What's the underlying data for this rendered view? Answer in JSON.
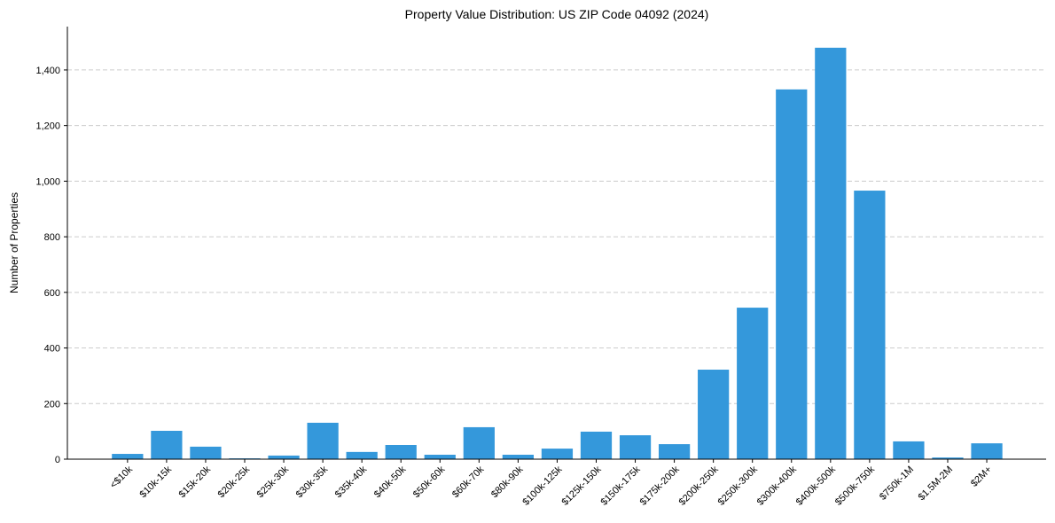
{
  "chart_data": {
    "type": "bar",
    "title": "Property Value Distribution: US ZIP Code 04092 (2024)",
    "xlabel": "",
    "ylabel": "Number of Properties",
    "ylim": [
      0,
      1556
    ],
    "yticks": [
      0,
      200,
      400,
      600,
      800,
      1000,
      1200,
      1400
    ],
    "ytick_labels": [
      "0",
      "200",
      "400",
      "600",
      "800",
      "1,000",
      "1,200",
      "1,400"
    ],
    "grid": "y dashed",
    "color": "#3498db",
    "categories": [
      "<$10k",
      "$10k-15k",
      "$15k-20k",
      "$20k-25k",
      "$25k-30k",
      "$30k-35k",
      "$35k-40k",
      "$40k-50k",
      "$50k-60k",
      "$60k-70k",
      "$80k-90k",
      "$100k-125k",
      "$125k-150k",
      "$150k-175k",
      "$175k-200k",
      "$200k-250k",
      "$250k-300k",
      "$300k-400k",
      "$400k-500k",
      "$500k-750k",
      "$750k-1M",
      "$1.5M-2M",
      "$2M+"
    ],
    "values": [
      19,
      102,
      45,
      3,
      13,
      131,
      26,
      51,
      16,
      115,
      16,
      38,
      99,
      86,
      54,
      322,
      545,
      1330,
      1480,
      966,
      64,
      6,
      57
    ]
  }
}
